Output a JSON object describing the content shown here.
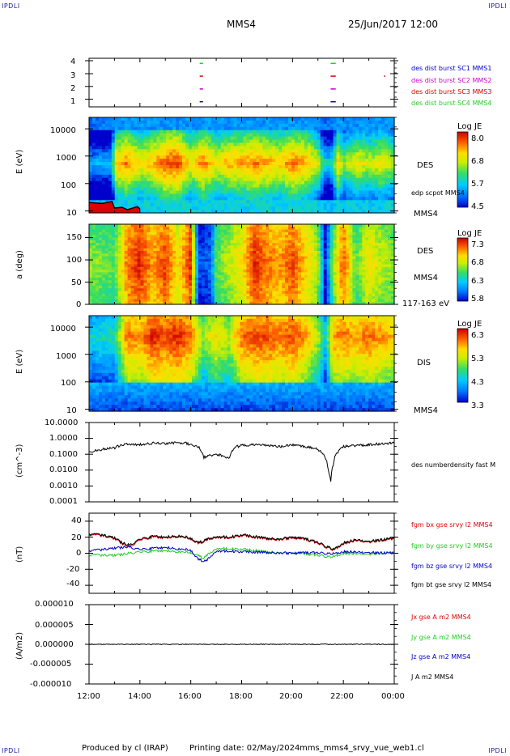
{
  "header": {
    "corner_tl": "IPDLI",
    "corner_tr": "IPDLI",
    "corner_bl": "IPDLI",
    "corner_br": "IPDLI",
    "spacecraft": "MMS4",
    "datetime": "25/Jun/2017 12:00"
  },
  "footer": {
    "produced_by": "Produced by cl (IRAP)",
    "printing_date": "Printing date: 02/May/2024",
    "script": "mms_mms4_srvy_vue_web1.cl"
  },
  "time_axis": {
    "ticks": [
      "12:00",
      "14:00",
      "16:00",
      "18:00",
      "20:00",
      "22:00",
      "00:00"
    ],
    "hours": [
      12,
      14,
      16,
      18,
      20,
      22,
      24
    ]
  },
  "colors": {
    "red": "#dd0000",
    "green": "#22cc22",
    "blue": "#0000cc",
    "magenta": "#cc00cc",
    "black": "#000000"
  },
  "chart_data": [
    {
      "type": "scatter",
      "panel": "burst availability",
      "y_ticks": [
        "4",
        "3",
        "2",
        "1"
      ],
      "ylim": [
        0.6,
        4.4
      ],
      "legend": [
        {
          "label": "des dist burst SC1 MMS1",
          "color": "#0000cc"
        },
        {
          "label": "des dist burst SC2 MMS2",
          "color": "#cc00cc"
        },
        {
          "label": "des dist burst SC3 MMS3",
          "color": "#dd0000"
        },
        {
          "label": "des dist burst SC4 MMS4",
          "color": "#22cc22"
        }
      ],
      "series": [
        {
          "name": "MMS1",
          "level": 1,
          "intervals": [
            [
              16.35,
              16.48
            ],
            [
              21.5,
              21.7
            ]
          ]
        },
        {
          "name": "MMS2",
          "level": 2,
          "intervals": [
            [
              16.35,
              16.48
            ],
            [
              21.5,
              21.7
            ]
          ]
        },
        {
          "name": "MMS3",
          "level": 3,
          "intervals": [
            [
              16.35,
              16.48
            ],
            [
              21.5,
              21.7
            ],
            [
              23.6,
              23.65
            ]
          ]
        },
        {
          "name": "MMS4",
          "level": 4,
          "intervals": [
            [
              16.35,
              16.48
            ],
            [
              21.5,
              21.7
            ]
          ]
        }
      ]
    },
    {
      "type": "heatmap",
      "panel": "DES energy spectrogram",
      "ylabel": "E (eV)",
      "yscale": "log",
      "y_ticks": [
        "10000",
        "1000",
        "100",
        "10"
      ],
      "ylim": [
        10,
        30000
      ],
      "right_label": "DES",
      "overlay_label": "edp scpot MMS4",
      "bottom_label": "MMS4",
      "colorbar": {
        "title": "Log JE",
        "ticks": [
          "8.0",
          "6.8",
          "5.7",
          "4.5"
        ],
        "range": [
          4.5,
          8.0
        ]
      },
      "peak_energy_profile": {
        "hours": [
          12.0,
          12.9,
          13.0,
          13.5,
          14.0,
          14.5,
          15.0,
          15.5,
          16.0,
          16.5,
          17.0,
          17.5,
          18.0,
          18.5,
          19.0,
          19.5,
          20.0,
          20.5,
          21.0,
          21.2,
          21.5,
          21.8,
          22.0,
          22.5,
          23.0,
          23.5,
          24.0
        ],
        "intensity": [
          0.25,
          0.28,
          0.75,
          0.85,
          0.7,
          0.78,
          0.9,
          0.92,
          0.7,
          0.85,
          0.7,
          0.78,
          0.8,
          0.85,
          0.8,
          0.75,
          0.85,
          0.8,
          0.65,
          0.4,
          0.3,
          0.75,
          0.55,
          0.7,
          0.62,
          0.7,
          0.6
        ]
      },
      "scpot_trace": {
        "hours": [
          12.0,
          12.5,
          12.9,
          13.0,
          13.3,
          13.5,
          13.9,
          14.0
        ],
        "energy": [
          24,
          22,
          26,
          15,
          16,
          13,
          17,
          14
        ]
      }
    },
    {
      "type": "heatmap",
      "panel": "DES pitch angle",
      "ylabel": "a (deg)",
      "y_ticks": [
        "150",
        "100",
        "50",
        "0"
      ],
      "ylim": [
        0,
        180
      ],
      "right_label": "DES",
      "mid_label": "MMS4",
      "bottom_label": "117-163 eV",
      "colorbar": {
        "title": "Log JE",
        "ticks": [
          "7.3",
          "6.8",
          "6.3",
          "5.8"
        ],
        "range": [
          5.8,
          7.3
        ]
      },
      "intensity_profile": {
        "hours": [
          12.0,
          13.0,
          13.5,
          14.0,
          14.5,
          15.0,
          15.5,
          16.0,
          16.3,
          16.8,
          17.0,
          17.5,
          18.0,
          18.5,
          19.0,
          19.5,
          20.0,
          20.5,
          21.0,
          21.3,
          21.6,
          22.0,
          22.5,
          23.0,
          23.5,
          24.0
        ],
        "intensity": [
          0.55,
          0.5,
          0.85,
          0.95,
          0.8,
          0.92,
          0.7,
          0.95,
          0.1,
          0.15,
          0.5,
          0.6,
          0.7,
          0.95,
          0.85,
          0.8,
          0.9,
          0.75,
          0.6,
          0.05,
          0.55,
          0.9,
          0.5,
          0.7,
          0.6,
          0.55
        ]
      }
    },
    {
      "type": "heatmap",
      "panel": "DIS energy spectrogram",
      "ylabel": "E (eV)",
      "yscale": "log",
      "y_ticks": [
        "10000",
        "1000",
        "100",
        "10"
      ],
      "ylim": [
        10,
        30000
      ],
      "right_label": "DIS",
      "bottom_label": "MMS4",
      "colorbar": {
        "title": "Log JE",
        "ticks": [
          "6.3",
          "5.3",
          "4.3",
          "3.3"
        ],
        "range": [
          3.3,
          6.3
        ]
      },
      "intensity_profile": {
        "hours": [
          12.0,
          13.0,
          13.5,
          14.0,
          14.5,
          15.0,
          15.5,
          16.0,
          16.5,
          17.0,
          17.5,
          18.0,
          18.5,
          19.0,
          19.5,
          20.0,
          20.5,
          21.0,
          21.3,
          21.6,
          22.0,
          22.5,
          23.0,
          23.5,
          24.0
        ],
        "intensity": [
          0.35,
          0.4,
          0.85,
          0.8,
          0.95,
          0.9,
          0.95,
          0.85,
          0.55,
          0.7,
          0.6,
          0.85,
          0.9,
          0.9,
          0.85,
          0.9,
          0.8,
          0.6,
          0.35,
          0.8,
          0.85,
          0.8,
          0.85,
          0.8,
          0.75
        ]
      }
    },
    {
      "type": "line",
      "panel": "density",
      "ylabel": "(cm^-3)",
      "yscale": "log",
      "y_ticks": [
        "10.0000",
        "1.0000",
        "0.1000",
        "0.0100",
        "0.0010",
        "0.0001"
      ],
      "ylim": [
        0.0001,
        10
      ],
      "series": [
        {
          "name": "des numberdensity fast M",
          "color": "#000000",
          "x": [
            12.0,
            12.5,
            13.0,
            13.2,
            13.5,
            14.0,
            14.5,
            15.0,
            15.5,
            15.8,
            16.0,
            16.3,
            16.5,
            16.7,
            17.0,
            17.3,
            17.5,
            17.8,
            18.0,
            18.5,
            19.0,
            19.5,
            20.0,
            20.5,
            21.0,
            21.2,
            21.4,
            21.5,
            21.6,
            21.8,
            22.0,
            22.5,
            23.0,
            23.5,
            24.0
          ],
          "y": [
            0.15,
            0.2,
            0.25,
            0.35,
            0.45,
            0.4,
            0.5,
            0.45,
            0.55,
            0.5,
            0.4,
            0.3,
            0.06,
            0.08,
            0.1,
            0.08,
            0.05,
            0.3,
            0.35,
            0.4,
            0.38,
            0.3,
            0.4,
            0.3,
            0.2,
            0.1,
            0.01,
            0.001,
            0.02,
            0.15,
            0.3,
            0.35,
            0.4,
            0.45,
            0.5
          ]
        }
      ]
    },
    {
      "type": "line",
      "panel": "magnetic field",
      "ylabel": "(nT)",
      "y_ticks": [
        "40",
        "20",
        "0",
        "-20",
        "-40"
      ],
      "ylim": [
        -50,
        50
      ],
      "series": [
        {
          "name": "fgm bx gse srvy l2 MMS4",
          "color": "#dd0000",
          "x": [
            12.0,
            12.5,
            13.0,
            13.3,
            13.6,
            14.0,
            14.5,
            15.0,
            15.5,
            16.0,
            16.3,
            16.6,
            17.0,
            17.5,
            18.0,
            18.5,
            19.0,
            19.5,
            20.0,
            20.5,
            21.0,
            21.3,
            21.6,
            22.0,
            22.5,
            23.0,
            23.5,
            24.0
          ],
          "y": [
            23,
            22,
            18,
            12,
            8,
            17,
            20,
            19,
            21,
            18,
            12,
            16,
            20,
            19,
            22,
            20,
            18,
            17,
            19,
            17,
            13,
            8,
            4,
            12,
            16,
            14,
            16,
            18
          ]
        },
        {
          "name": "fgm by gse srvy l2 MMS4",
          "color": "#22cc22",
          "x": [
            12.0,
            13.0,
            14.0,
            15.0,
            16.0,
            16.5,
            17.0,
            18.0,
            19.0,
            20.0,
            21.0,
            21.5,
            22.0,
            23.0,
            24.0
          ],
          "y": [
            -2,
            -3,
            2,
            3,
            1,
            -6,
            6,
            5,
            2,
            0,
            -2,
            -5,
            0,
            -1,
            1
          ]
        },
        {
          "name": "fgm bz gse srvy l2 MMS4",
          "color": "#0000cc",
          "x": [
            12.0,
            13.0,
            13.5,
            14.0,
            15.0,
            16.0,
            16.3,
            16.6,
            17.0,
            18.0,
            19.0,
            20.0,
            21.0,
            21.5,
            22.0,
            23.0,
            24.0
          ],
          "y": [
            3,
            6,
            8,
            5,
            7,
            4,
            -8,
            -10,
            3,
            2,
            1,
            0,
            1,
            -1,
            2,
            1,
            0
          ]
        },
        {
          "name": "fgm bt gse srvy l2 MMS4",
          "color": "#000000",
          "x": [
            12.0,
            12.5,
            13.0,
            13.3,
            13.6,
            14.0,
            14.5,
            15.0,
            15.5,
            16.0,
            16.3,
            16.6,
            17.0,
            17.5,
            18.0,
            18.5,
            19.0,
            19.5,
            20.0,
            20.5,
            21.0,
            21.3,
            21.6,
            22.0,
            22.5,
            23.0,
            23.5,
            24.0
          ],
          "y": [
            24,
            23,
            19,
            13,
            10,
            18,
            21,
            20,
            22,
            19,
            13,
            17,
            21,
            20,
            23,
            21,
            19,
            18,
            20,
            18,
            14,
            9,
            5,
            13,
            17,
            15,
            17,
            19
          ]
        }
      ]
    },
    {
      "type": "line",
      "panel": "current density",
      "ylabel": "(A/m2)",
      "y_ticks": [
        "0.000010",
        "0.000005",
        "0.000000",
        "-0.000005",
        "-0.000010"
      ],
      "ylim": [
        -1e-05,
        1e-05
      ],
      "series": [
        {
          "name": "Jx gse A m2 MMS4",
          "color": "#dd0000"
        },
        {
          "name": "Jy gse A m2 MMS4",
          "color": "#22cc22"
        },
        {
          "name": "Jz gse A m2 MMS4",
          "color": "#0000cc"
        },
        {
          "name": "J A m2 MMS4",
          "color": "#000000",
          "x": [
            12,
            24
          ],
          "y": [
            0,
            0
          ]
        }
      ]
    }
  ]
}
